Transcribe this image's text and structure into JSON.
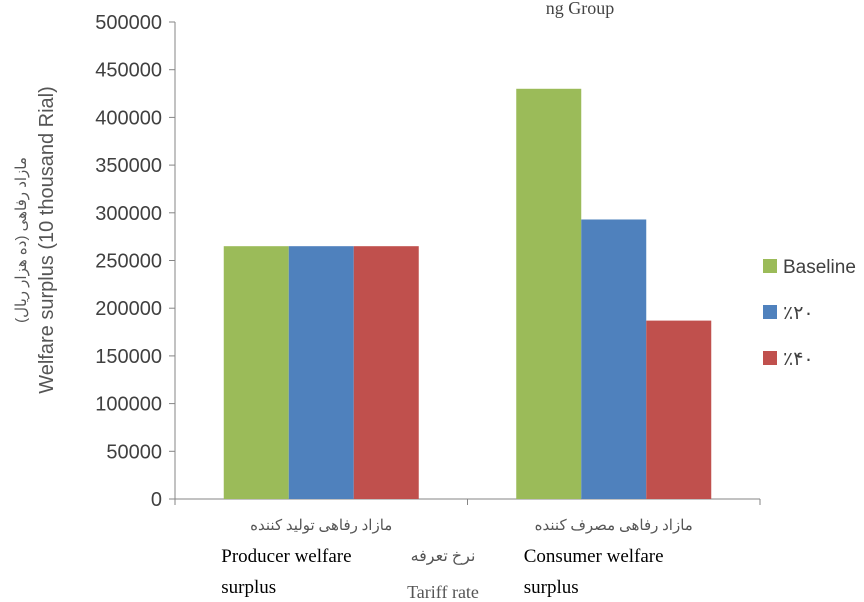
{
  "chart_data": {
    "type": "bar",
    "title": "ng Group",
    "categories": [
      {
        "fa": "مازاد رفاهی تولید کننده",
        "en_line1": "Producer welfare",
        "en_line2": "surplus"
      },
      {
        "fa": "مازاد رفاهی مصرف کننده",
        "en_line1": "Consumer welfare",
        "en_line2": "surplus"
      }
    ],
    "series": [
      {
        "name": "Baseline",
        "color": "#9bbb59",
        "values": [
          265000,
          430000
        ]
      },
      {
        "name": "٪۲۰",
        "color": "#4f81bd",
        "values": [
          265000,
          293000
        ]
      },
      {
        "name": "٪۴۰",
        "color": "#c0504d",
        "values": [
          265000,
          187000
        ]
      }
    ],
    "ylabel_fa": "مازاد رفاهی (ده هزار ریال)",
    "ylabel_en": "Welfare surplus (10 thousand Rial)",
    "xlabel_fa": "نرخ تعرفه",
    "xlabel_en": "Tariff rate",
    "ylim": [
      0,
      500000
    ],
    "yticks": [
      0,
      50000,
      100000,
      150000,
      200000,
      250000,
      300000,
      350000,
      400000,
      450000,
      500000
    ],
    "legend_position": "right",
    "grid": false
  }
}
